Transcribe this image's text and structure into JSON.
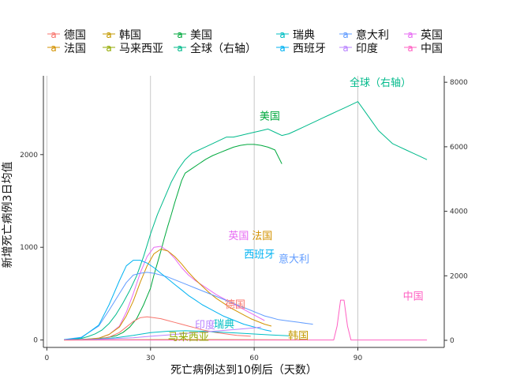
{
  "chart_data": {
    "type": "line",
    "title": "",
    "xlabel": "死亡病例达到10例后（天数）",
    "ylabel": "新增死亡病例3日均值",
    "y2label": "",
    "xlim": [
      -1,
      115
    ],
    "ylim": [
      -80,
      2850
    ],
    "y2lim": [
      -220,
      8200
    ],
    "x_ticks": [
      0,
      30,
      60,
      90
    ],
    "y_ticks": [
      0,
      1000,
      2000
    ],
    "y2_ticks": [
      0,
      2000,
      4000,
      6000,
      8000
    ],
    "grid": "vertical-major",
    "legend_position": "top",
    "legend": [
      {
        "name": "德国",
        "color": "#F8766D"
      },
      {
        "name": "韩国",
        "color": "#C49A00"
      },
      {
        "name": "美国",
        "color": "#00A93E"
      },
      {
        "name": "瑞典",
        "color": "#00BFC4"
      },
      {
        "name": "意大利",
        "color": "#619CFF"
      },
      {
        "name": "英国",
        "color": "#E76BF3"
      },
      {
        "name": "法国",
        "color": "#D39200"
      },
      {
        "name": "马来西亚",
        "color": "#93AA00"
      },
      {
        "name": "全球（右轴）",
        "color": "#00BA8B"
      },
      {
        "name": "西班牙",
        "color": "#00B2F2"
      },
      {
        "name": "印度",
        "color": "#B983FF"
      },
      {
        "name": "中国",
        "color": "#FF61C3"
      }
    ],
    "series": [
      {
        "name": "全球（右轴）",
        "color": "#00BA8B",
        "axis": "right",
        "x": [
          5,
          8,
          10,
          12,
          14,
          16,
          18,
          20,
          22,
          24,
          26,
          28,
          30,
          32,
          34,
          36,
          38,
          40,
          42,
          44,
          46,
          48,
          50,
          52,
          54,
          56,
          58,
          60,
          62,
          64,
          66,
          68,
          70,
          72,
          74,
          76,
          78,
          80,
          82,
          84,
          86,
          88,
          90,
          92,
          94,
          96,
          98,
          100,
          102,
          104,
          106,
          108,
          110
        ],
        "y": [
          20,
          40,
          60,
          120,
          200,
          320,
          520,
          800,
          1150,
          1550,
          2000,
          2600,
          3300,
          3900,
          4400,
          4900,
          5300,
          5600,
          5800,
          5900,
          6000,
          6100,
          6200,
          6300,
          6300,
          6350,
          6400,
          6450,
          6500,
          6550,
          6450,
          6350,
          6400,
          6500,
          6600,
          6700,
          6800,
          6900,
          7000,
          7100,
          7200,
          7300,
          7400,
          7100,
          6800,
          6500,
          6300,
          6100,
          6000,
          5900,
          5800,
          5700,
          5600
        ]
      },
      {
        "name": "美国",
        "color": "#00A93E",
        "axis": "left",
        "x": [
          5,
          10,
          14,
          17,
          20,
          22,
          24,
          26,
          28,
          29,
          30,
          31,
          32,
          33,
          34,
          35,
          36,
          37,
          38,
          39,
          40,
          42,
          44,
          46,
          48,
          50,
          52,
          54,
          56,
          58,
          60,
          62,
          64,
          66,
          68
        ],
        "y": [
          3,
          6,
          12,
          25,
          45,
          80,
          140,
          230,
          380,
          470,
          560,
          700,
          830,
          960,
          1100,
          1230,
          1350,
          1480,
          1600,
          1720,
          1800,
          1850,
          1900,
          1950,
          1990,
          2020,
          2050,
          2080,
          2100,
          2110,
          2110,
          2100,
          2080,
          2050,
          1900
        ]
      },
      {
        "name": "英国",
        "color": "#E76BF3",
        "axis": "left",
        "x": [
          5,
          10,
          15,
          18,
          21,
          23,
          25,
          27,
          29,
          31,
          33,
          35,
          37,
          39,
          41,
          43,
          45,
          47,
          49,
          51,
          53,
          55,
          57,
          59,
          61,
          63
        ],
        "y": [
          1,
          5,
          20,
          60,
          150,
          300,
          500,
          720,
          900,
          1000,
          1010,
          960,
          880,
          780,
          700,
          640,
          590,
          540,
          490,
          450,
          410,
          370,
          330,
          290,
          250,
          210
        ]
      },
      {
        "name": "法国",
        "color": "#D39200",
        "axis": "left",
        "x": [
          5,
          10,
          15,
          18,
          21,
          23,
          25,
          27,
          29,
          31,
          33,
          35,
          37,
          39,
          41,
          43,
          45,
          47,
          49,
          51,
          53,
          55,
          57,
          59,
          61,
          63,
          65
        ],
        "y": [
          2,
          5,
          20,
          60,
          140,
          260,
          420,
          620,
          800,
          930,
          980,
          960,
          900,
          820,
          730,
          650,
          580,
          510,
          450,
          400,
          350,
          310,
          270,
          230,
          200,
          170,
          150
        ]
      },
      {
        "name": "意大利",
        "color": "#619CFF",
        "axis": "left",
        "x": [
          5,
          10,
          15,
          18,
          21,
          23,
          25,
          27,
          29,
          31,
          33,
          35,
          37,
          39,
          41,
          43,
          45,
          47,
          49,
          51,
          53,
          55,
          57,
          59,
          61,
          63,
          65,
          67,
          69,
          71,
          73,
          75,
          77
        ],
        "y": [
          5,
          30,
          150,
          320,
          500,
          620,
          700,
          720,
          730,
          720,
          700,
          680,
          650,
          620,
          590,
          560,
          530,
          500,
          470,
          440,
          410,
          380,
          350,
          320,
          290,
          260,
          240,
          220,
          210,
          200,
          190,
          180,
          170
        ]
      },
      {
        "name": "西班牙",
        "color": "#00B2F2",
        "axis": "left",
        "x": [
          5,
          10,
          15,
          18,
          21,
          23,
          25,
          27,
          29,
          31,
          33,
          35,
          37,
          39,
          41,
          43,
          45,
          47,
          49,
          51,
          53,
          55,
          57,
          59,
          61,
          63,
          65
        ],
        "y": [
          3,
          25,
          160,
          380,
          640,
          800,
          860,
          860,
          830,
          780,
          720,
          660,
          600,
          540,
          480,
          430,
          380,
          340,
          300,
          260,
          230,
          200,
          170,
          150,
          130,
          110,
          95
        ]
      },
      {
        "name": "德国",
        "color": "#F8766D",
        "axis": "left",
        "x": [
          5,
          10,
          15,
          18,
          21,
          23,
          25,
          27,
          29,
          31,
          33,
          35,
          37,
          39,
          41,
          43,
          45,
          47,
          49,
          51,
          53,
          55,
          57,
          59
        ],
        "y": [
          1,
          3,
          10,
          30,
          80,
          140,
          200,
          240,
          250,
          240,
          230,
          210,
          190,
          170,
          150,
          130,
          110,
          95,
          80,
          70,
          60,
          50,
          45,
          40
        ]
      },
      {
        "name": "瑞典",
        "color": "#00BFC4",
        "axis": "left",
        "x": [
          5,
          10,
          15,
          20,
          25,
          30,
          35,
          40,
          45,
          50,
          55,
          60,
          65,
          70
        ],
        "y": [
          1,
          3,
          10,
          25,
          50,
          80,
          95,
          100,
          95,
          85,
          75,
          65,
          55,
          45
        ]
      },
      {
        "name": "印度",
        "color": "#B983FF",
        "axis": "left",
        "x": [
          5,
          10,
          15,
          20,
          25,
          30,
          35,
          40,
          45,
          50,
          55,
          60,
          62
        ],
        "y": [
          1,
          3,
          8,
          15,
          25,
          40,
          55,
          70,
          85,
          100,
          115,
          130,
          140
        ]
      },
      {
        "name": "马来西亚",
        "color": "#93AA00",
        "axis": "left",
        "x": [
          5,
          20,
          40,
          60,
          64
        ],
        "y": [
          0,
          1,
          2,
          1,
          1
        ]
      },
      {
        "name": "韩国",
        "color": "#C49A00",
        "axis": "left",
        "x": [
          5,
          20,
          40,
          60,
          70,
          75
        ],
        "y": [
          0,
          2,
          5,
          3,
          2,
          2
        ]
      },
      {
        "name": "中国",
        "color": "#FF61C3",
        "axis": "left",
        "x": [
          5,
          30,
          60,
          83,
          84,
          85,
          86,
          87,
          88,
          89,
          90,
          95,
          100,
          105,
          110
        ],
        "y": [
          0,
          0,
          0,
          0,
          150,
          430,
          430,
          150,
          0,
          0,
          0,
          0,
          0,
          0,
          0
        ]
      }
    ],
    "annotations": [
      {
        "text": "全球（右轴）",
        "x": 96.5,
        "y2": 8000,
        "color": "#00BA8B"
      },
      {
        "text": "美国",
        "x": 64.5,
        "y": 2420,
        "color": "#00A93E"
      },
      {
        "text": "英国",
        "x": 55.5,
        "y": 1130,
        "color": "#E76BF3"
      },
      {
        "text": "法国",
        "x": 62.3,
        "y": 1130,
        "color": "#D39200"
      },
      {
        "text": "西班牙",
        "x": 61.5,
        "y": 930,
        "color": "#00B2F2"
      },
      {
        "text": "意大利",
        "x": 71.5,
        "y": 880,
        "color": "#619CFF"
      },
      {
        "text": "中国",
        "x": 106,
        "y": 480,
        "color": "#FF61C3"
      },
      {
        "text": "德国",
        "x": 54.5,
        "y": 390,
        "color": "#F8766D"
      },
      {
        "text": "印度",
        "x": 45.8,
        "y": 165,
        "color": "#B983FF"
      },
      {
        "text": "瑞典",
        "x": 51.3,
        "y": 175,
        "color": "#00BFC4"
      },
      {
        "text": "马来西亚",
        "x": 41,
        "y": 40,
        "color": "#93AA00"
      },
      {
        "text": "韩国",
        "x": 72.8,
        "y": 50,
        "color": "#C49A00"
      }
    ]
  }
}
